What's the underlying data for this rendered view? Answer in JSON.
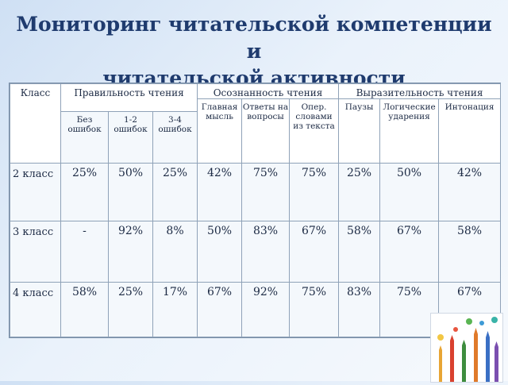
{
  "title": {
    "line1": "Мониторинг читательской компетенции и",
    "line2": "читательской активности"
  },
  "table": {
    "class_header": "Класс",
    "groups": {
      "correctness": "Правильность чтения",
      "awareness": "Осознанность чтения",
      "expressiveness": "Выразительность чтения"
    },
    "subheaders": {
      "no_errors": "Без ошибок",
      "errors_1_2": "1-2 ошибок",
      "errors_3_4": "3-4 ошибок",
      "main_idea": "Главная мысль",
      "answers": "Ответы на вопросы",
      "word_ops": "Опер. словами из текста",
      "pauses": "Паузы",
      "logical_stress": "Логические ударения",
      "intonation": "Интонация"
    },
    "rows": [
      {
        "class": "2 класс",
        "values": [
          "25%",
          "50%",
          "25%",
          "42%",
          "75%",
          "75%",
          "25%",
          "50%",
          "42%"
        ]
      },
      {
        "class": "3 класс",
        "values": [
          "-",
          "92%",
          "8%",
          "50%",
          "83%",
          "67%",
          "58%",
          "67%",
          "58%"
        ]
      },
      {
        "class": "4 класс",
        "values": [
          "58%",
          "25%",
          "17%",
          "67%",
          "92%",
          "75%",
          "83%",
          "75%",
          "67%"
        ]
      }
    ]
  },
  "decor": {
    "image_icon": "pencils-icon"
  }
}
